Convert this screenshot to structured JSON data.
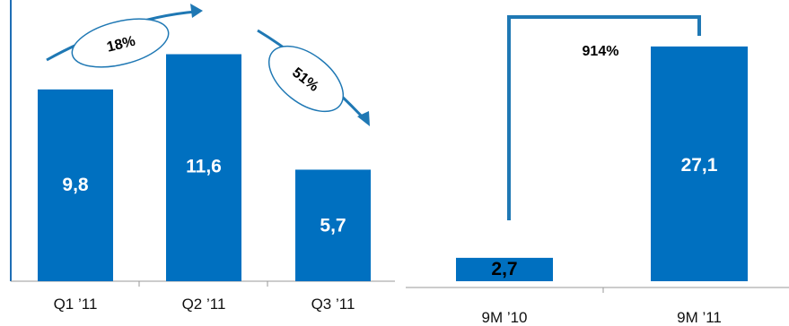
{
  "chart_data": [
    {
      "type": "bar",
      "categories": [
        "Q1 ’11",
        "Q2 ’11",
        "Q3 ’11"
      ],
      "values": [
        9.8,
        11.6,
        5.7
      ],
      "value_labels": [
        "9,8",
        "11,6",
        "5,7"
      ],
      "title": "",
      "xlabel": "",
      "ylabel": "",
      "ylim": [
        0,
        13.5
      ],
      "annotations": [
        {
          "text": "18%",
          "from": "Q1 ’11",
          "to": "Q2 ’11",
          "direction": "up"
        },
        {
          "text": "51%",
          "from": "Q2 ’11",
          "to": "Q3 ’11",
          "direction": "down"
        }
      ]
    },
    {
      "type": "bar",
      "categories": [
        "9M ’10",
        "9M ’11"
      ],
      "values": [
        2.7,
        27.1
      ],
      "value_labels": [
        "2,7",
        "27,1"
      ],
      "title": "",
      "xlabel": "",
      "ylabel": "",
      "ylim": [
        0,
        30.5
      ],
      "annotations": [
        {
          "text": "914%",
          "from": "9M ’10",
          "to": "9M ’11",
          "direction": "up"
        }
      ]
    }
  ],
  "colors": {
    "bar": "#0070C0",
    "accent": "#1F78B4",
    "axis": "#999999"
  }
}
